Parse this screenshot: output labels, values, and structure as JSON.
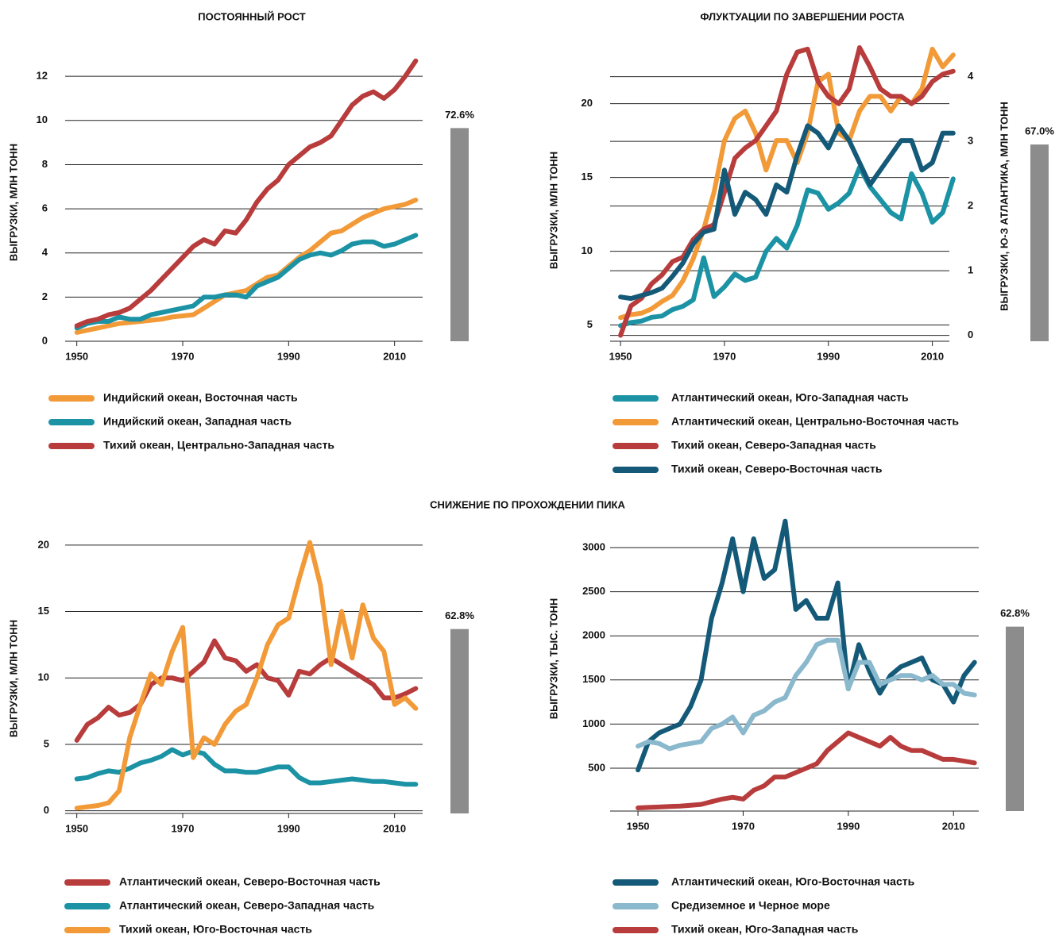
{
  "section_title": "СНИЖЕНИЕ ПО ПРОХОЖДЕНИИ ПИКА",
  "chart_data": [
    {
      "type": "line",
      "title": "ПОСТОЯННЫЙ РОСТ",
      "ylabel": "ВЫГРУЗКИ, МЛН ТОНН",
      "x": [
        1950,
        1952,
        1954,
        1956,
        1958,
        1960,
        1962,
        1964,
        1966,
        1968,
        1970,
        1972,
        1974,
        1976,
        1978,
        1980,
        1982,
        1984,
        1986,
        1988,
        1990,
        1992,
        1994,
        1996,
        1998,
        2000,
        2002,
        2004,
        2006,
        2008,
        2010,
        2012,
        2014
      ],
      "xlim": [
        1947.8,
        2015.3
      ],
      "xticks": [
        1950,
        1970,
        1990,
        2010
      ],
      "ylim": [
        0,
        13.3
      ],
      "yticks": [
        0,
        2,
        4,
        6,
        8,
        10,
        12
      ],
      "grid": true,
      "series": [
        {
          "name": "Индийский океан, Восточная часть",
          "color": "#f29a38",
          "values": [
            0.4,
            0.5,
            0.6,
            0.7,
            0.8,
            0.85,
            0.9,
            0.95,
            1.0,
            1.1,
            1.15,
            1.2,
            1.5,
            1.8,
            2.1,
            2.2,
            2.3,
            2.6,
            2.9,
            3.0,
            3.4,
            3.8,
            4.1,
            4.5,
            4.9,
            5.0,
            5.3,
            5.6,
            5.8,
            6.0,
            6.1,
            6.2,
            6.4
          ]
        },
        {
          "name": "Индийский океан, Западная часть",
          "color": "#1b93a5",
          "values": [
            0.6,
            0.8,
            0.9,
            0.9,
            1.1,
            1.0,
            1.0,
            1.2,
            1.3,
            1.4,
            1.5,
            1.6,
            2.0,
            2.0,
            2.1,
            2.1,
            2.0,
            2.5,
            2.7,
            2.9,
            3.3,
            3.7,
            3.9,
            4.0,
            3.9,
            4.1,
            4.4,
            4.5,
            4.5,
            4.3,
            4.4,
            4.6,
            4.8
          ]
        },
        {
          "name": "Тихий океан, Центрально-Западная часть",
          "color": "#b83c3c",
          "values": [
            0.7,
            0.9,
            1.0,
            1.2,
            1.3,
            1.5,
            1.9,
            2.3,
            2.8,
            3.3,
            3.8,
            4.3,
            4.6,
            4.4,
            5.0,
            4.9,
            5.5,
            6.3,
            6.9,
            7.3,
            8.0,
            8.4,
            8.8,
            9.0,
            9.3,
            10.0,
            10.7,
            11.1,
            11.3,
            11.0,
            11.4,
            12.0,
            12.7
          ]
        }
      ],
      "share": {
        "values": [
          72.6
        ],
        "value_labels": [
          "72.6%"
        ],
        "color": "#8c8c8c"
      }
    },
    {
      "type": "line",
      "title": "ФЛУКТУАЦИИ ПО ЗАВЕРШЕНИИ РОСТА",
      "ylabel": "ВЫГРУЗКИ, МЛН ТОНН",
      "y2label": "ВЫГРУЗКИ, Ю-З АТЛАНТИКА, МЛН ТОНН",
      "x": [
        1950,
        1952,
        1954,
        1956,
        1958,
        1960,
        1962,
        1964,
        1966,
        1968,
        1970,
        1972,
        1974,
        1976,
        1978,
        1980,
        1982,
        1984,
        1986,
        1988,
        1990,
        1992,
        1994,
        1996,
        1998,
        2000,
        2002,
        2004,
        2006,
        2008,
        2010,
        2012,
        2014
      ],
      "xlim": [
        1948,
        2014.8
      ],
      "xticks": [
        1950,
        1970,
        1990,
        2010
      ],
      "ylim": [
        3.9,
        23.8
      ],
      "yticks": [
        5,
        10,
        15,
        20
      ],
      "y2lim": [
        -0.09,
        4.45
      ],
      "y2ticks": [
        0,
        1,
        2,
        3,
        4
      ],
      "grid": true,
      "series": [
        {
          "name": "Атлантический океан, Юго-Западная часть",
          "color": "#1b93a5",
          "axis": "y2",
          "values": [
            0.15,
            0.2,
            0.22,
            0.28,
            0.3,
            0.4,
            0.45,
            0.55,
            1.2,
            0.6,
            0.75,
            0.95,
            0.85,
            0.9,
            1.3,
            1.5,
            1.35,
            1.7,
            2.25,
            2.2,
            1.95,
            2.05,
            2.2,
            2.6,
            2.3,
            2.1,
            1.9,
            1.8,
            2.5,
            2.2,
            1.75,
            1.9,
            2.42
          ]
        },
        {
          "name": "Атлантический океан, Центрально-Восточная часть",
          "color": "#f29a38",
          "values": [
            5.5,
            5.7,
            5.8,
            6.1,
            6.6,
            7.0,
            8.0,
            9.5,
            11.5,
            14,
            17.5,
            19,
            19.5,
            18,
            15.5,
            17.5,
            17.5,
            16,
            18,
            21.5,
            22,
            18,
            17.5,
            19.5,
            20.5,
            20.5,
            19.5,
            20.5,
            20,
            21,
            23.7,
            22.5,
            23.3
          ]
        },
        {
          "name": "Тихий океан, Северо-Западная часть",
          "color": "#b83c3c",
          "values": [
            4.3,
            6.3,
            6.8,
            7.8,
            8.4,
            9.3,
            9.6,
            10.8,
            11.5,
            11.8,
            14,
            16.3,
            17,
            17.5,
            18.5,
            19.5,
            22,
            23.5,
            23.7,
            21.5,
            20.5,
            20,
            21,
            23.8,
            22.5,
            21,
            20.5,
            20.5,
            20,
            20.5,
            21.5,
            22,
            22.2
          ]
        },
        {
          "name": "Тихий океан, Северо-Восточная часть",
          "color": "#145a78",
          "values": [
            6.9,
            6.8,
            7.0,
            7.2,
            7.5,
            8.3,
            9.2,
            10.5,
            11.3,
            11.5,
            15.5,
            12.5,
            14,
            13.5,
            12.5,
            14.5,
            14,
            16.5,
            18.5,
            18,
            17,
            18.5,
            17.5,
            16,
            14.5,
            15.5,
            16.5,
            17.5,
            17.5,
            15.5,
            16,
            18,
            18
          ]
        }
      ],
      "share": {
        "values": [
          67.0
        ],
        "value_labels": [
          "67.0%"
        ],
        "color": "#8c8c8c"
      }
    },
    {
      "type": "line",
      "ylabel": "ВЫГРУЗКИ, МЛН ТОНН",
      "x": [
        1950,
        1952,
        1954,
        1956,
        1958,
        1960,
        1962,
        1964,
        1966,
        1968,
        1970,
        1972,
        1974,
        1976,
        1978,
        1980,
        1982,
        1984,
        1986,
        1988,
        1990,
        1992,
        1994,
        1996,
        1998,
        2000,
        2002,
        2004,
        2006,
        2008,
        2010,
        2012,
        2014
      ],
      "xlim": [
        1947.8,
        2015.3
      ],
      "xticks": [
        1950,
        1970,
        1990,
        2010
      ],
      "ylim": [
        -0.2,
        22.2
      ],
      "yticks": [
        0,
        5,
        10,
        15,
        20
      ],
      "grid": true,
      "series": [
        {
          "name": "Атлантический океан, Северо-Восточная часть",
          "color": "#b83c3c",
          "values": [
            5.3,
            6.5,
            7.0,
            7.8,
            7.2,
            7.4,
            8.0,
            9.5,
            10.0,
            10.0,
            9.8,
            10.5,
            11.2,
            12.8,
            11.5,
            11.3,
            10.5,
            11.0,
            10.0,
            9.8,
            8.7,
            10.5,
            10.3,
            11.0,
            11.5,
            11.0,
            10.5,
            10.0,
            9.5,
            8.5,
            8.5,
            8.8,
            9.2
          ]
        },
        {
          "name": "Атлантический океан, Северо-Западная часть",
          "color": "#1b93a5",
          "values": [
            2.4,
            2.5,
            2.8,
            3.0,
            2.9,
            3.2,
            3.6,
            3.8,
            4.1,
            4.6,
            4.2,
            4.5,
            4.3,
            3.5,
            3.0,
            3.0,
            2.9,
            2.9,
            3.1,
            3.3,
            3.3,
            2.5,
            2.1,
            2.1,
            2.2,
            2.3,
            2.4,
            2.3,
            2.2,
            2.2,
            2.1,
            2.0,
            2.0
          ]
        },
        {
          "name": "Тихий океан, Юго-Восточная часть",
          "color": "#f29a38",
          "values": [
            0.2,
            0.3,
            0.4,
            0.6,
            1.5,
            5.5,
            8.0,
            10.3,
            9.5,
            12.0,
            13.8,
            4.0,
            5.5,
            5.0,
            6.5,
            7.5,
            8.0,
            10.0,
            12.5,
            14.0,
            14.5,
            17.5,
            20.2,
            17.0,
            11.0,
            15.0,
            11.5,
            15.5,
            13.0,
            12.0,
            8.0,
            8.5,
            7.7
          ]
        }
      ],
      "share": {
        "values": [
          62.8
        ],
        "value_labels": [
          "62.8%"
        ],
        "color": "#8c8c8c"
      }
    },
    {
      "type": "line",
      "ylabel": "ВЫГРУЗКИ, ТЫС. ТОНН",
      "x": [
        1950,
        1952,
        1954,
        1956,
        1958,
        1960,
        1962,
        1964,
        1966,
        1968,
        1970,
        1972,
        1974,
        1976,
        1978,
        1980,
        1982,
        1984,
        1986,
        1988,
        1990,
        1992,
        1994,
        1996,
        1998,
        2000,
        2002,
        2004,
        2006,
        2008,
        2010,
        2012,
        2014
      ],
      "xlim": [
        1944.7,
        2014.8
      ],
      "xticks": [
        1950,
        1970,
        1990,
        2010
      ],
      "ylim": [
        14,
        3450
      ],
      "yticks": [
        500,
        1000,
        1500,
        2000,
        2500,
        3000
      ],
      "grid": true,
      "series": [
        {
          "name": "Атлантический океан, Юго-Восточная часть",
          "color": "#145a78",
          "values": [
            480,
            800,
            900,
            950,
            1000,
            1200,
            1500,
            2200,
            2600,
            3100,
            2500,
            3100,
            2650,
            2750,
            3300,
            2300,
            2400,
            2200,
            2200,
            2600,
            1400,
            1900,
            1600,
            1350,
            1550,
            1650,
            1700,
            1750,
            1500,
            1450,
            1250,
            1550,
            1700
          ]
        },
        {
          "name": "Средиземное и Черное море",
          "color": "#8ab8cc",
          "values": [
            750,
            800,
            780,
            720,
            760,
            780,
            800,
            950,
            1000,
            1080,
            900,
            1100,
            1150,
            1250,
            1300,
            1550,
            1700,
            1900,
            1950,
            1950,
            1400,
            1700,
            1700,
            1450,
            1500,
            1550,
            1550,
            1500,
            1550,
            1450,
            1450,
            1350,
            1330
          ]
        },
        {
          "name": "Тихий океан, Юго-Западная часть",
          "color": "#b83c3c",
          "values": [
            50,
            55,
            60,
            65,
            70,
            80,
            90,
            120,
            150,
            170,
            150,
            250,
            300,
            400,
            400,
            450,
            500,
            550,
            700,
            800,
            900,
            850,
            800,
            750,
            850,
            750,
            700,
            700,
            650,
            600,
            600,
            580,
            560
          ]
        }
      ],
      "share": {
        "values": [
          62.8
        ],
        "value_labels": [
          "62.8%"
        ],
        "color": "#8c8c8c"
      }
    }
  ]
}
